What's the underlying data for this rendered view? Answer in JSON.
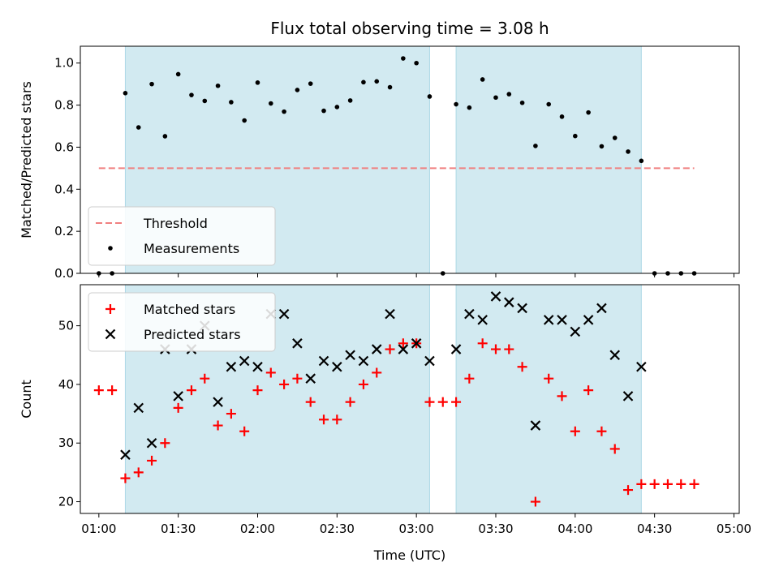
{
  "chart_data": {
    "title": "Flux total observing time = 3.08 h",
    "xlabel": "Time (UTC)",
    "xticks": [
      "01:00",
      "01:30",
      "02:00",
      "02:30",
      "03:00",
      "03:30",
      "04:00",
      "04:30",
      "05:00"
    ],
    "shaded_intervals": [
      [
        "01:10",
        "03:05"
      ],
      [
        "03:15",
        "04:25"
      ]
    ],
    "shade_color": "#add8e6",
    "panels": [
      {
        "type": "scatter",
        "ylabel": "Matched/Predicted stars",
        "ylim": [
          0,
          1.08
        ],
        "yticks": [
          "0.0",
          "0.2",
          "0.4",
          "0.6",
          "0.8",
          "1.0"
        ],
        "threshold": {
          "name": "Threshold",
          "value": 0.5,
          "x_range": [
            "01:00",
            "04:45"
          ],
          "color": "#f08080"
        },
        "legend": {
          "position": "lower-left"
        },
        "series": [
          {
            "name": "Measurements",
            "marker": "dot",
            "color": "#000000",
            "x": [
              "01:00",
              "01:05",
              "01:10",
              "01:15",
              "01:20",
              "01:25",
              "01:30",
              "01:35",
              "01:40",
              "01:45",
              "01:50",
              "01:55",
              "02:00",
              "02:05",
              "02:10",
              "02:15",
              "02:20",
              "02:25",
              "02:30",
              "02:35",
              "02:40",
              "02:45",
              "02:50",
              "02:55",
              "03:00",
              "03:05",
              "03:10",
              "03:15",
              "03:20",
              "03:25",
              "03:30",
              "03:35",
              "03:40",
              "03:45",
              "03:50",
              "03:55",
              "04:00",
              "04:05",
              "04:10",
              "04:15",
              "04:20",
              "04:25",
              "04:30",
              "04:35",
              "04:40",
              "04:45"
            ],
            "y": [
              0.0,
              0.0,
              0.857,
              0.694,
              0.9,
              0.652,
              0.947,
              0.848,
              0.82,
              0.892,
              0.814,
              0.727,
              0.907,
              0.808,
              0.769,
              0.872,
              0.902,
              0.773,
              0.791,
              0.822,
              0.909,
              0.913,
              0.885,
              1.022,
              1.0,
              0.841,
              0.0,
              0.804,
              0.788,
              0.922,
              0.836,
              0.852,
              0.811,
              0.606,
              0.804,
              0.745,
              0.653,
              0.765,
              0.604,
              0.644,
              0.579,
              0.535,
              0.0,
              0.0,
              0.0,
              0.0
            ]
          }
        ]
      },
      {
        "type": "scatter",
        "ylabel": "Count",
        "ylim": [
          18,
          57
        ],
        "yticks": [
          "20",
          "30",
          "40",
          "50"
        ],
        "legend": {
          "position": "upper-left"
        },
        "series": [
          {
            "name": "Matched stars",
            "marker": "plus",
            "color": "#ff0000",
            "x": [
              "01:00",
              "01:05",
              "01:10",
              "01:15",
              "01:20",
              "01:25",
              "01:30",
              "01:35",
              "01:40",
              "01:45",
              "01:50",
              "01:55",
              "02:00",
              "02:05",
              "02:10",
              "02:15",
              "02:20",
              "02:25",
              "02:30",
              "02:35",
              "02:40",
              "02:45",
              "02:50",
              "02:55",
              "03:00",
              "03:05",
              "03:10",
              "03:15",
              "03:20",
              "03:25",
              "03:30",
              "03:35",
              "03:40",
              "03:45",
              "03:50",
              "03:55",
              "04:00",
              "04:05",
              "04:10",
              "04:15",
              "04:20",
              "04:25",
              "04:30",
              "04:35",
              "04:40",
              "04:45"
            ],
            "y": [
              39,
              39,
              24,
              25,
              27,
              30,
              36,
              39,
              41,
              33,
              35,
              32,
              39,
              42,
              40,
              41,
              37,
              34,
              34,
              37,
              40,
              42,
              46,
              47,
              47,
              37,
              37,
              37,
              41,
              47,
              46,
              46,
              43,
              20,
              41,
              38,
              32,
              39,
              32,
              29,
              22,
              23,
              23,
              23,
              23,
              23
            ]
          },
          {
            "name": "Predicted stars",
            "marker": "x",
            "color": "#000000",
            "x": [
              "01:10",
              "01:15",
              "01:20",
              "01:25",
              "01:30",
              "01:35",
              "01:40",
              "01:45",
              "01:50",
              "01:55",
              "02:00",
              "02:05",
              "02:10",
              "02:15",
              "02:20",
              "02:25",
              "02:30",
              "02:35",
              "02:40",
              "02:45",
              "02:50",
              "02:55",
              "03:00",
              "03:05",
              "03:15",
              "03:20",
              "03:25",
              "03:30",
              "03:35",
              "03:40",
              "03:45",
              "03:50",
              "03:55",
              "04:00",
              "04:05",
              "04:10",
              "04:15",
              "04:20",
              "04:25"
            ],
            "y": [
              28,
              36,
              30,
              46,
              38,
              46,
              50,
              37,
              43,
              44,
              43,
              52,
              52,
              47,
              41,
              44,
              43,
              45,
              44,
              46,
              52,
              46,
              47,
              44,
              46,
              52,
              51,
              55,
              54,
              53,
              33,
              51,
              51,
              49,
              51,
              53,
              45,
              38,
              43
            ]
          }
        ]
      }
    ]
  }
}
